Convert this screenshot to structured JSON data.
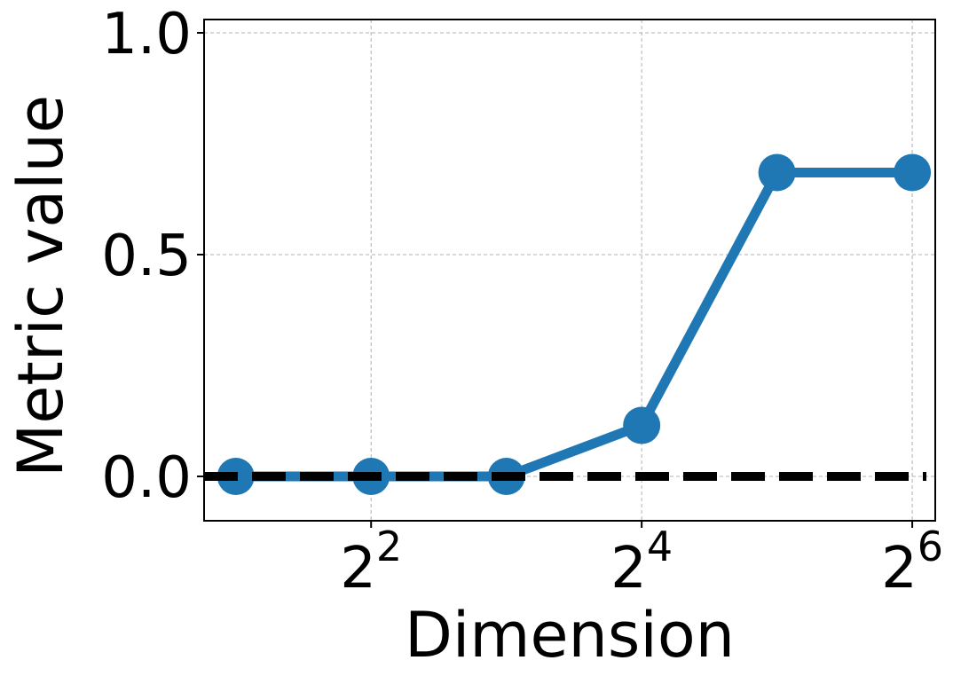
{
  "chart_data": {
    "type": "line",
    "xlabel": "Dimension",
    "ylabel": "Metric value",
    "xscale": "log2",
    "x_tick_values": [
      4,
      16,
      64
    ],
    "x_tick_labels": [
      {
        "base": "2",
        "exp": "2"
      },
      {
        "base": "2",
        "exp": "4"
      },
      {
        "base": "2",
        "exp": "6"
      }
    ],
    "y_ticks": [
      0.0,
      0.5,
      1.0
    ],
    "y_tick_labels": [
      "0.0",
      "0.5",
      "1.0"
    ],
    "xlim": [
      1.7,
      72
    ],
    "ylim": [
      -0.1,
      1.03
    ],
    "grid": true,
    "series": [
      {
        "x": [
          2,
          4,
          8,
          16,
          32,
          64
        ],
        "values": [
          0.0,
          0.0,
          0.0,
          0.115,
          0.685,
          0.685
        ],
        "color": "#1f77b4",
        "marker": "circle"
      }
    ],
    "reference_line": {
      "y": 0.0,
      "style": "dashed",
      "color": "#000000"
    }
  }
}
